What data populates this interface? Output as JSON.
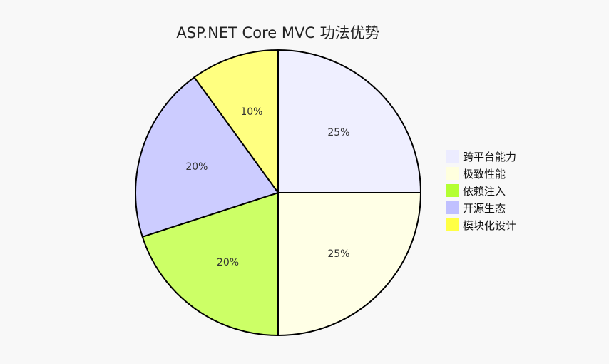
{
  "chart_data": {
    "type": "pie",
    "title": "ASP.NET Core MVC 功法优势",
    "slices": [
      {
        "label": "跨平台能力",
        "value": 25,
        "percent_label": "25%",
        "color": "#efefff",
        "legend_color": "#ececff"
      },
      {
        "label": "极致性能",
        "value": 25,
        "percent_label": "25%",
        "color": "#ffffe6",
        "legend_color": "#ffffde"
      },
      {
        "label": "依赖注入",
        "value": 20,
        "percent_label": "20%",
        "color": "#ccff66",
        "legend_color": "#b3ff33"
      },
      {
        "label": "开源生态",
        "value": 20,
        "percent_label": "20%",
        "color": "#ccccff",
        "legend_color": "#c0c0ff"
      },
      {
        "label": "模块化设计",
        "value": 10,
        "percent_label": "10%",
        "color": "#ffff80",
        "legend_color": "#ffff44"
      }
    ],
    "legend_position": "right",
    "start_angle": "12 o'clock",
    "direction": "clockwise"
  }
}
